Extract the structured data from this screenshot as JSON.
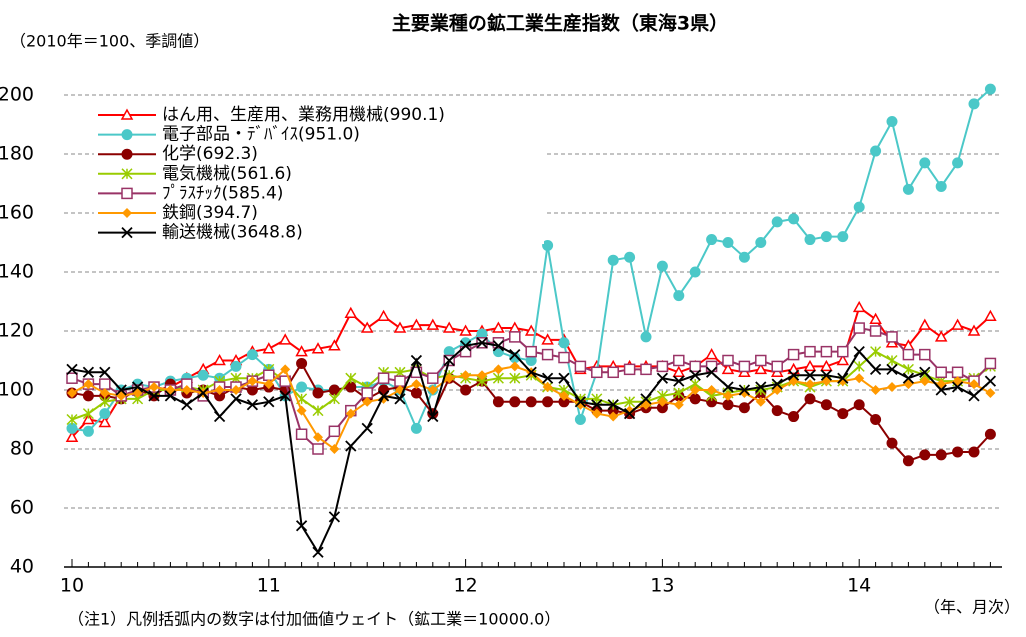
{
  "chart_data": {
    "type": "line",
    "title": "主要業種の鉱工業生産指数（東海3県）",
    "subtitle": "（2010年＝100、季調値）",
    "note": "（注1）凡例括弧内の数字は付加価値ウェイト（鉱工業＝10000.0）",
    "x_label": "（年、月次）",
    "categories": [
      "10",
      null,
      null,
      null,
      null,
      null,
      null,
      null,
      null,
      null,
      null,
      null,
      "11",
      null,
      null,
      null,
      null,
      null,
      null,
      null,
      null,
      null,
      null,
      null,
      "12",
      null,
      null,
      null,
      null,
      null,
      null,
      null,
      null,
      null,
      null,
      null,
      "13",
      null,
      null,
      null,
      null,
      null,
      null,
      null,
      null,
      null,
      null,
      null,
      "14",
      null,
      null,
      null,
      null,
      null,
      null,
      null,
      null
    ],
    "ylim": [
      40,
      200
    ],
    "yticks": [
      40,
      60,
      80,
      100,
      120,
      140,
      160,
      180,
      200
    ],
    "grid": true,
    "series": [
      {
        "name": "はん用、生産用、業務用機械(990.1)",
        "color": "#ff0000",
        "marker": "triangle-open",
        "values": [
          84,
          90,
          89,
          98,
          100,
          100,
          101,
          104,
          107,
          110,
          110,
          113,
          114,
          117,
          113,
          114,
          115,
          126,
          121,
          125,
          121,
          122,
          122,
          121,
          120,
          120,
          121,
          121,
          120,
          117,
          117,
          107,
          108,
          108,
          108,
          108,
          108,
          106,
          108,
          112,
          107,
          106,
          107,
          106,
          107,
          108,
          108,
          110,
          128,
          124,
          116,
          115,
          122,
          118,
          122,
          120,
          125
        ]
      },
      {
        "name": "電子部品・ﾃﾞﾊﾞｲｽ(951.0)",
        "color": "#4bc8c8",
        "marker": "circle",
        "values": [
          87,
          86,
          92,
          100,
          102,
          101,
          103,
          104,
          105,
          104,
          108,
          112,
          107,
          98,
          101,
          100,
          100,
          101,
          101,
          103,
          100,
          87,
          100,
          113,
          116,
          119,
          113,
          111,
          110,
          149,
          116,
          90,
          106,
          144,
          145,
          118,
          142,
          132,
          140,
          151,
          150,
          145,
          150,
          157,
          158,
          151,
          152,
          152,
          162,
          181,
          191,
          168,
          177,
          169,
          177,
          197,
          202
        ]
      },
      {
        "name": "化学(692.3)",
        "color": "#8b0000",
        "marker": "circle",
        "values": [
          99,
          98,
          98,
          97,
          100,
          98,
          102,
          99,
          100,
          98,
          101,
          100,
          101,
          100,
          109,
          99,
          100,
          101,
          97,
          100,
          101,
          99,
          92,
          104,
          100,
          103,
          96,
          96,
          96,
          96,
          96,
          96,
          93,
          93,
          92,
          94,
          94,
          98,
          97,
          96,
          95,
          94,
          99,
          93,
          91,
          97,
          95,
          92,
          95,
          90,
          82,
          76,
          78,
          78,
          79,
          79,
          85
        ]
      },
      {
        "name": "電気機械(561.6)",
        "color": "#99cc00",
        "marker": "star",
        "values": [
          90,
          92,
          96,
          97,
          97,
          100,
          100,
          101,
          100,
          103,
          104,
          104,
          107,
          103,
          97,
          93,
          97,
          104,
          101,
          106,
          106,
          107,
          104,
          105,
          104,
          103,
          104,
          104,
          105,
          101,
          100,
          97,
          97,
          95,
          96,
          96,
          98,
          99,
          102,
          98,
          99,
          100,
          100,
          101,
          103,
          101,
          103,
          103,
          108,
          113,
          110,
          107,
          105,
          103,
          103,
          104,
          108
        ]
      },
      {
        "name": "ﾌﾟﾗｽﾁｯｸ(585.4)",
        "color": "#993366",
        "marker": "square-open",
        "values": [
          104,
          102,
          102,
          98,
          100,
          101,
          100,
          102,
          98,
          101,
          101,
          103,
          105,
          103,
          85,
          80,
          86,
          93,
          99,
          104,
          103,
          106,
          104,
          110,
          113,
          116,
          116,
          118,
          113,
          112,
          111,
          108,
          106,
          106,
          107,
          107,
          108,
          110,
          108,
          108,
          110,
          108,
          110,
          108,
          112,
          113,
          113,
          113,
          121,
          120,
          118,
          112,
          112,
          106,
          106,
          103,
          109
        ]
      },
      {
        "name": "鉄鋼(394.7)",
        "color": "#ff9900",
        "marker": "diamond",
        "values": [
          99,
          102,
          99,
          98,
          99,
          101,
          100,
          100,
          99,
          100,
          100,
          103,
          102,
          107,
          93,
          84,
          80,
          92,
          96,
          97,
          100,
          102,
          100,
          104,
          105,
          105,
          107,
          108,
          106,
          101,
          98,
          95,
          92,
          91,
          93,
          95,
          96,
          95,
          100,
          100,
          98,
          99,
          96,
          100,
          103,
          102,
          103,
          103,
          104,
          100,
          101,
          102,
          103,
          102,
          103,
          102,
          99
        ]
      },
      {
        "name": "輸送機械(3648.8)",
        "color": "#000000",
        "marker": "x",
        "values": [
          107,
          106,
          106,
          100,
          101,
          98,
          98,
          95,
          99,
          91,
          97,
          95,
          96,
          98,
          54,
          45,
          57,
          81,
          87,
          98,
          97,
          110,
          91,
          110,
          115,
          116,
          115,
          112,
          106,
          104,
          104,
          96,
          95,
          95,
          92,
          97,
          104,
          103,
          105,
          106,
          101,
          100,
          101,
          102,
          105,
          105,
          105,
          104,
          113,
          107,
          107,
          104,
          106,
          100,
          101,
          98,
          103
        ]
      }
    ]
  }
}
